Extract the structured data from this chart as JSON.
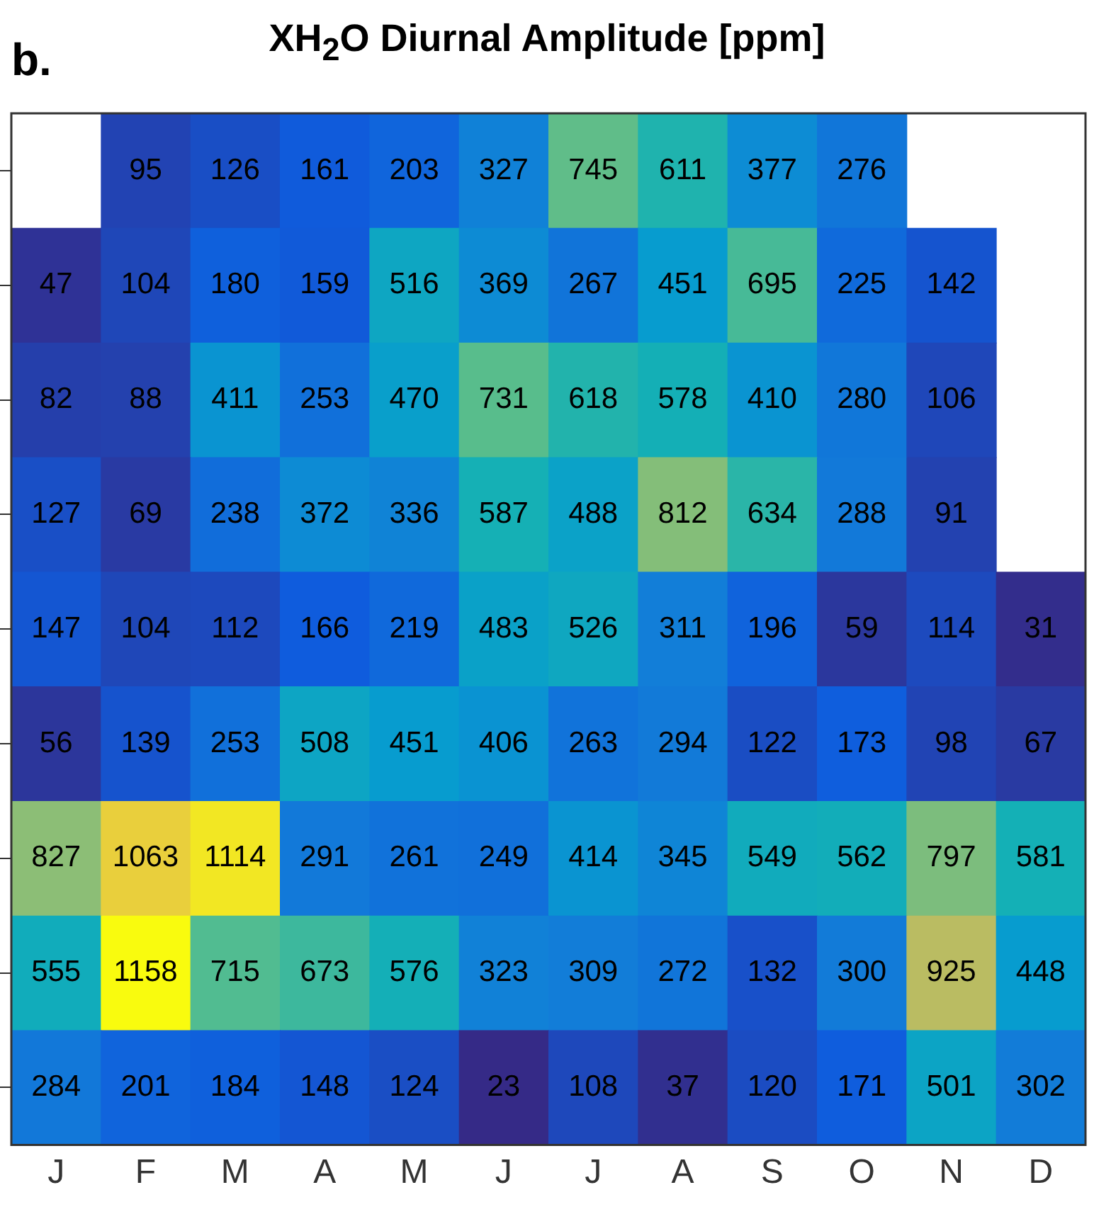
{
  "chart_data": {
    "type": "heatmap",
    "title": "XH$_{2}$O Diurnal Amplitude [ppm]",
    "annotations": [
      "b."
    ],
    "tick_labels": "x",
    "data_labels": true,
    "categories": [
      "J",
      "F",
      "M",
      "A",
      "M",
      "J",
      "J",
      "A",
      "S",
      "O",
      "N",
      "D"
    ],
    "y_categories": [
      null,
      null,
      null,
      null,
      null,
      null,
      null,
      null,
      null
    ],
    "cells": [
      [
        null,
        95,
        126,
        161,
        203,
        327,
        745,
        611,
        377,
        276,
        null,
        null
      ],
      [
        47,
        104,
        180,
        159,
        516,
        369,
        267,
        451,
        695,
        225,
        142,
        null
      ],
      [
        82,
        88,
        411,
        253,
        470,
        731,
        618,
        578,
        410,
        280,
        106,
        null
      ],
      [
        127,
        69,
        238,
        372,
        336,
        587,
        488,
        812,
        634,
        288,
        91,
        null
      ],
      [
        147,
        104,
        112,
        166,
        219,
        483,
        526,
        311,
        196,
        59,
        114,
        31
      ],
      [
        56,
        139,
        253,
        508,
        451,
        406,
        263,
        294,
        122,
        173,
        98,
        67
      ],
      [
        827,
        1063,
        1114,
        291,
        261,
        249,
        414,
        345,
        549,
        562,
        797,
        581
      ],
      [
        555,
        1158,
        715,
        673,
        576,
        323,
        309,
        272,
        132,
        300,
        925,
        448
      ],
      [
        284,
        201,
        184,
        148,
        124,
        23,
        108,
        37,
        120,
        171,
        501,
        302
      ]
    ]
  }
}
